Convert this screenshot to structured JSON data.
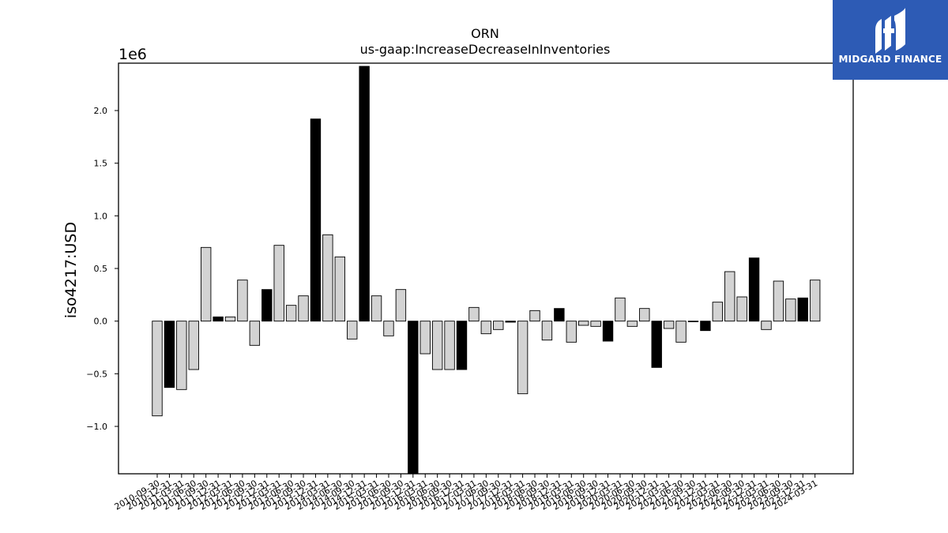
{
  "logo": {
    "name": "MIDGARD FINANCE",
    "icon": "midgard-finance-logo-icon",
    "background": "#2d5bb5"
  },
  "chart_data": {
    "type": "bar",
    "title": "ORN",
    "subtitle": "us-gaap:IncreaseDecreaseInInventories",
    "ylabel": "iso4217:USD",
    "xlabel": "",
    "y_multiplier_label": "1e6",
    "ylim": [
      -1.45,
      2.45
    ],
    "yticks": [
      -1.0,
      -0.5,
      0.0,
      0.5,
      1.0,
      1.5,
      2.0
    ],
    "ytick_labels": [
      "−1.0",
      "−0.5",
      "0.0",
      "0.5",
      "1.0",
      "1.5",
      "2.0"
    ],
    "colors": {
      "annual": "#000000",
      "quarterly": "#d3d3d3",
      "edge": "#000000"
    },
    "categories": [
      "2010-09-30",
      "2010-12-31",
      "2011-03-31",
      "2011-06-30",
      "2011-09-30",
      "2011-12-31",
      "2012-03-31",
      "2012-06-30",
      "2012-09-30",
      "2012-12-31",
      "2013-03-31",
      "2013-06-30",
      "2013-09-30",
      "2013-12-31",
      "2014-03-31",
      "2014-06-30",
      "2014-09-30",
      "2014-12-31",
      "2015-03-31",
      "2015-06-30",
      "2015-09-30",
      "2015-12-31",
      "2016-03-31",
      "2016-06-30",
      "2016-09-30",
      "2016-12-31",
      "2017-03-31",
      "2017-06-30",
      "2017-09-30",
      "2017-12-31",
      "2018-03-31",
      "2018-06-30",
      "2018-09-30",
      "2018-12-31",
      "2019-03-31",
      "2019-06-30",
      "2019-09-30",
      "2019-12-31",
      "2020-03-31",
      "2020-06-30",
      "2020-09-30",
      "2020-12-31",
      "2021-03-31",
      "2021-06-30",
      "2021-09-30",
      "2021-12-31",
      "2022-03-31",
      "2022-06-30",
      "2022-09-30",
      "2022-12-31",
      "2023-03-31",
      "2023-06-30",
      "2023-09-30",
      "2023-12-31",
      "2024-03-31"
    ],
    "tick_labels": [
      "2010-09-30",
      "2010-12-31",
      "2011-03-31",
      "2011-06-30",
      "2011-09-30",
      "2011-12-31",
      "2012-03-31",
      "2012-06-30",
      "2012-09-30",
      "2012-12-31",
      "2013-03-31",
      "2013-06-30",
      "2013-09-30",
      "2013-12-31",
      "2014-03-31",
      "2014-06-30",
      "2014-09-30",
      "2014-12-31",
      "2015-03-31",
      "2015-06-30",
      "2015-09-30",
      "2015-12-31",
      "2016-03-31",
      "2016-06-30",
      "2016-09-30",
      "2016-12-31",
      "2017-03-31",
      "2017-06-30",
      "2017-09-30",
      "2017-12-31",
      "2018-03-31",
      "2018-06-30",
      "2018-09-30",
      "2018-12-31",
      "2019-03-31",
      "2019-06-30",
      "2019-09-30",
      "2019-12-31",
      "2020-03-31",
      "2020-06-30",
      "2020-09-30",
      "2020-12-31",
      "2021-03-31",
      "2021-06-30",
      "2021-09-30",
      "2021-12-31",
      "2022-03-31",
      "2022-06-30",
      "2022-09-30",
      "2022-12-31",
      "2023-03-31",
      "2023-06-30",
      "2023-09-30",
      "2023-12-31",
      "2024-03-31"
    ],
    "values": [
      -0.9,
      -0.63,
      -0.65,
      -0.46,
      0.7,
      0.04,
      0.04,
      0.39,
      -0.23,
      0.3,
      0.72,
      0.15,
      0.24,
      1.92,
      0.82,
      0.61,
      -0.17,
      2.42,
      0.24,
      -0.14,
      0.3,
      -1.5,
      -0.31,
      -0.46,
      -0.46,
      -0.46,
      0.13,
      -0.12,
      -0.08,
      -0.01,
      -0.69,
      0.1,
      -0.18,
      0.12,
      -0.2,
      -0.04,
      -0.05,
      -0.19,
      0.22,
      -0.05,
      0.12,
      -0.44,
      -0.07,
      -0.2,
      0.0,
      -0.09,
      0.18,
      0.47,
      0.23,
      0.6,
      -0.08,
      0.38,
      0.21,
      0.22,
      0.39
    ],
    "annual": [
      false,
      true,
      false,
      false,
      false,
      true,
      false,
      false,
      false,
      true,
      false,
      false,
      false,
      true,
      false,
      false,
      false,
      true,
      false,
      false,
      false,
      true,
      false,
      false,
      false,
      true,
      false,
      false,
      false,
      true,
      false,
      false,
      false,
      true,
      false,
      false,
      false,
      true,
      false,
      false,
      false,
      true,
      false,
      false,
      false,
      true,
      false,
      false,
      false,
      true,
      false,
      false,
      false,
      true,
      false
    ]
  }
}
